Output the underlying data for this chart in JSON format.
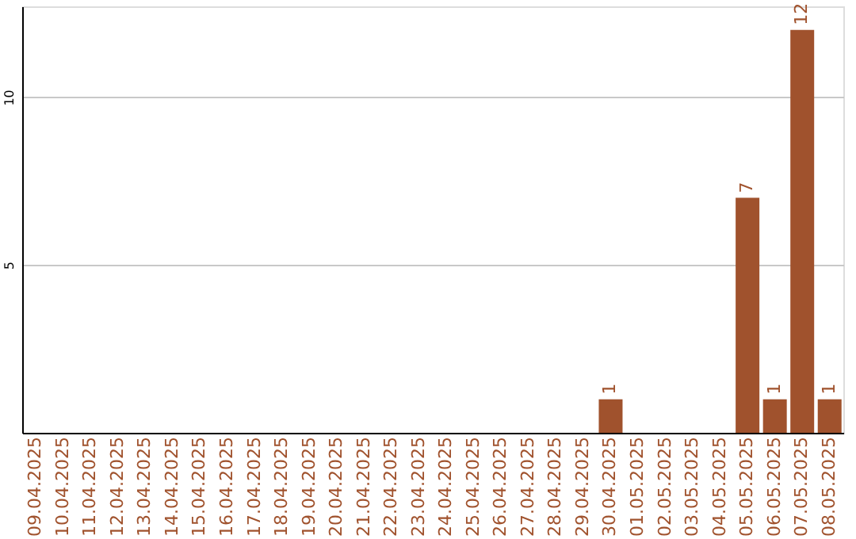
{
  "chart_data": {
    "type": "bar",
    "categories": [
      "09.04.2025",
      "10.04.2025",
      "11.04.2025",
      "12.04.2025",
      "13.04.2025",
      "14.04.2025",
      "15.04.2025",
      "16.04.2025",
      "17.04.2025",
      "18.04.2025",
      "19.04.2025",
      "20.04.2025",
      "21.04.2025",
      "22.04.2025",
      "23.04.2025",
      "24.04.2025",
      "25.04.2025",
      "26.04.2025",
      "27.04.2025",
      "28.04.2025",
      "29.04.2025",
      "30.04.2025",
      "01.05.2025",
      "02.05.2025",
      "03.05.2025",
      "04.05.2025",
      "05.05.2025",
      "06.05.2025",
      "07.05.2025",
      "08.05.2025"
    ],
    "values": [
      0,
      0,
      0,
      0,
      0,
      0,
      0,
      0,
      0,
      0,
      0,
      0,
      0,
      0,
      0,
      0,
      0,
      0,
      0,
      0,
      0,
      1,
      0,
      0,
      0,
      0,
      7,
      1,
      12,
      1
    ],
    "value_labels": [
      null,
      null,
      null,
      null,
      null,
      null,
      null,
      null,
      null,
      null,
      null,
      null,
      null,
      null,
      null,
      null,
      null,
      null,
      null,
      null,
      null,
      "1",
      null,
      null,
      null,
      null,
      "7",
      "1",
      "12",
      "1"
    ],
    "color": "#a0522d",
    "ylim": [
      0,
      12.7
    ],
    "yticks": [
      5,
      10
    ],
    "grid": "y"
  }
}
